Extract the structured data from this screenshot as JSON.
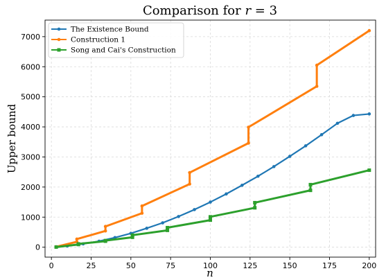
{
  "chart_data": {
    "type": "line",
    "title": "Comparison for ",
    "title_math": "r",
    "title_suffix": " = 3",
    "xlabel": "n",
    "ylabel": "Upper bound",
    "xlim": [
      -4,
      204
    ],
    "ylim": [
      -330,
      7550
    ],
    "xticks": [
      0,
      25,
      50,
      75,
      100,
      125,
      150,
      175,
      200
    ],
    "yticks": [
      0,
      1000,
      2000,
      3000,
      4000,
      5000,
      6000,
      7000
    ],
    "grid": true,
    "legend_position": "top-left",
    "series": [
      {
        "name": "The Existence Bound",
        "color": "#1f77b4",
        "marker": "dot",
        "x": [
          3,
          10,
          20,
          30,
          40,
          50,
          60,
          70,
          80,
          90,
          100,
          110,
          120,
          130,
          140,
          150,
          160,
          170,
          180,
          190,
          200
        ],
        "y": [
          5,
          40,
          110,
          200,
          320,
          460,
          630,
          810,
          1020,
          1250,
          1500,
          1770,
          2060,
          2360,
          2680,
          3020,
          3370,
          3740,
          4120,
          4380,
          4430
        ]
      },
      {
        "name": "Construction 1",
        "color": "#ff7f0e",
        "marker": "dot",
        "x": [
          3,
          16,
          16,
          34,
          34,
          57,
          57,
          87,
          87,
          124,
          124,
          167,
          167,
          200
        ],
        "y": [
          15,
          180,
          270,
          540,
          690,
          1130,
          1370,
          2100,
          2480,
          3460,
          3990,
          5350,
          6050,
          7200
        ]
      },
      {
        "name": "Song and Cai's Construction",
        "color": "#2ca02c",
        "marker": "square",
        "x": [
          3,
          17,
          17,
          34,
          34,
          51,
          51,
          73,
          73,
          100,
          100,
          128,
          128,
          163,
          163,
          200
        ],
        "y": [
          5,
          90,
          110,
          200,
          220,
          330,
          400,
          560,
          650,
          900,
          1010,
          1310,
          1480,
          1890,
          2080,
          2560
        ]
      }
    ]
  }
}
